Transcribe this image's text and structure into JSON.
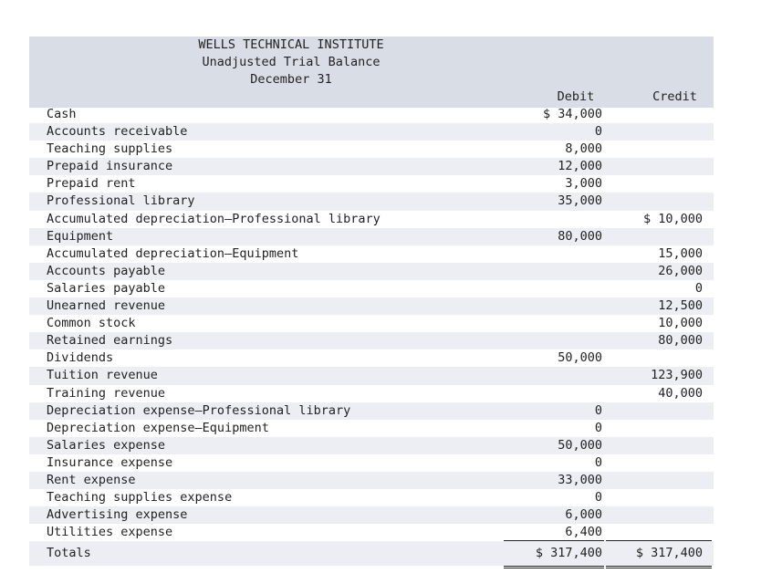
{
  "header": {
    "company": "WELLS TECHNICAL INSTITUTE",
    "report": "Unadjusted Trial Balance",
    "date": "December 31",
    "debit_label": "Debit",
    "credit_label": "Credit"
  },
  "rows": [
    {
      "label": "Cash",
      "debit": "$ 34,000",
      "credit": ""
    },
    {
      "label": "Accounts receivable",
      "debit": "0",
      "credit": ""
    },
    {
      "label": "Teaching supplies",
      "debit": "8,000",
      "credit": ""
    },
    {
      "label": "Prepaid insurance",
      "debit": "12,000",
      "credit": ""
    },
    {
      "label": "Prepaid rent",
      "debit": "3,000",
      "credit": ""
    },
    {
      "label": "Professional library",
      "debit": "35,000",
      "credit": ""
    },
    {
      "label": "Accumulated depreciation—Professional library",
      "debit": "",
      "credit": "$ 10,000"
    },
    {
      "label": "Equipment",
      "debit": "80,000",
      "credit": ""
    },
    {
      "label": "Accumulated depreciation—Equipment",
      "debit": "",
      "credit": "15,000"
    },
    {
      "label": "Accounts payable",
      "debit": "",
      "credit": "26,000"
    },
    {
      "label": "Salaries payable",
      "debit": "",
      "credit": "0"
    },
    {
      "label": "Unearned revenue",
      "debit": "",
      "credit": "12,500"
    },
    {
      "label": "Common stock",
      "debit": "",
      "credit": "10,000"
    },
    {
      "label": "Retained earnings",
      "debit": "",
      "credit": "80,000"
    },
    {
      "label": "Dividends",
      "debit": "50,000",
      "credit": ""
    },
    {
      "label": "Tuition revenue",
      "debit": "",
      "credit": "123,900"
    },
    {
      "label": "Training revenue",
      "debit": "",
      "credit": "40,000"
    },
    {
      "label": "Depreciation expense—Professional library",
      "debit": "0",
      "credit": ""
    },
    {
      "label": "Depreciation expense—Equipment",
      "debit": "0",
      "credit": ""
    },
    {
      "label": "Salaries expense",
      "debit": "50,000",
      "credit": ""
    },
    {
      "label": "Insurance expense",
      "debit": "0",
      "credit": ""
    },
    {
      "label": "Rent expense",
      "debit": "33,000",
      "credit": ""
    },
    {
      "label": "Teaching supplies expense",
      "debit": "0",
      "credit": ""
    },
    {
      "label": "Advertising expense",
      "debit": "6,000",
      "credit": ""
    },
    {
      "label": "Utilities expense",
      "debit": "6,400",
      "credit": ""
    }
  ],
  "totals": {
    "label": "Totals",
    "debit": "$ 317,400",
    "credit": "$ 317,400"
  }
}
